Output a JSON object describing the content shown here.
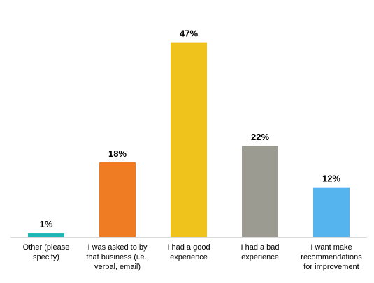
{
  "chart_data": {
    "type": "bar",
    "categories": [
      "Other (please specify)",
      "I was asked to by that business (i.e., verbal, email)",
      "I had a good experience",
      "I had a bad experience",
      "I want make recommendations for improvement"
    ],
    "category_lines": [
      [
        "Other (please",
        "specify)"
      ],
      [
        "I was asked to by",
        "that business (i.e.,",
        "verbal, email)"
      ],
      [
        "I had a good",
        "experience"
      ],
      [
        "I had a bad",
        "experience"
      ],
      [
        "I want make",
        "recommendations",
        "for improvement"
      ]
    ],
    "values": [
      1,
      18,
      47,
      22,
      12
    ],
    "data_labels": [
      "1%",
      "18%",
      "47%",
      "22%",
      "12%"
    ],
    "colors": [
      "#1fb5b5",
      "#ef7b22",
      "#f0c21c",
      "#9c9b91",
      "#55b4ee"
    ],
    "title": "",
    "xlabel": "",
    "ylabel": "",
    "ylim": [
      0,
      50
    ],
    "grid": false,
    "legend": "none"
  }
}
